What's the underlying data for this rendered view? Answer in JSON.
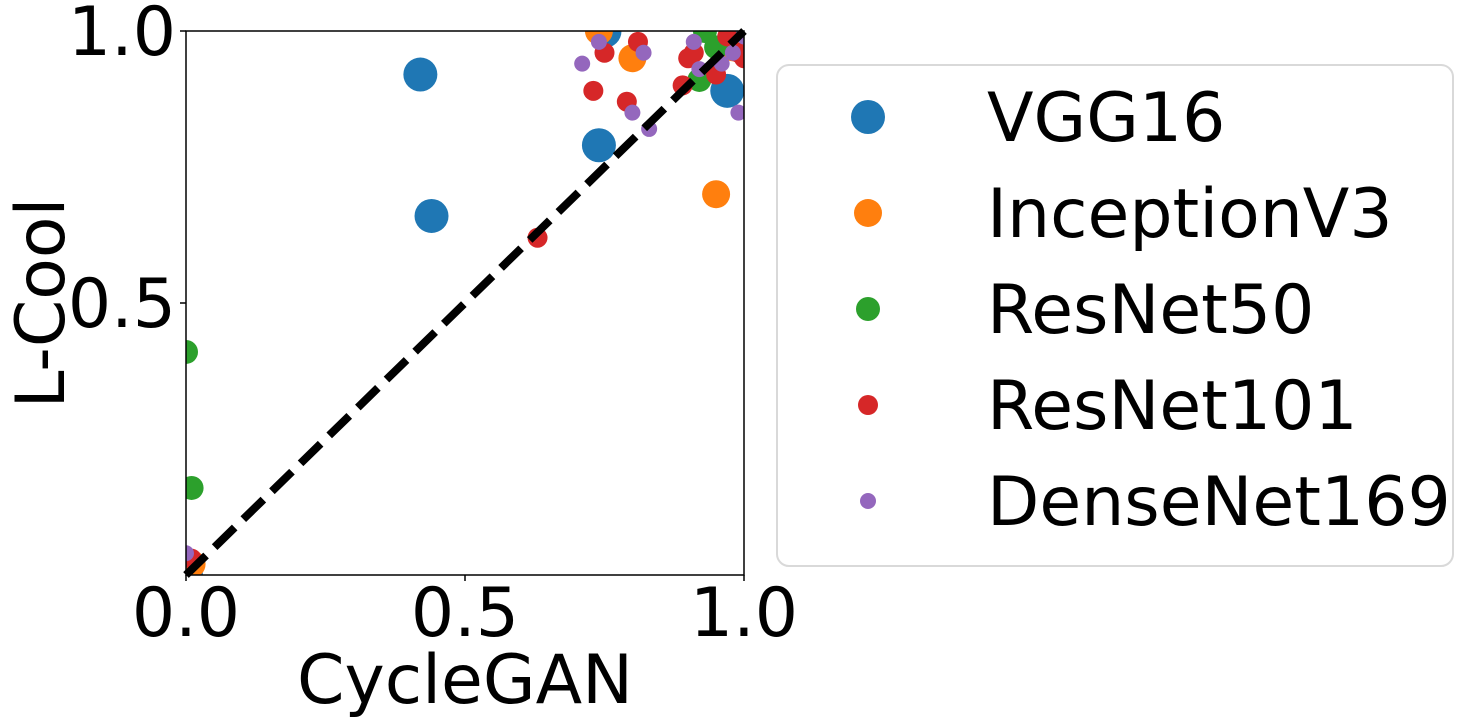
{
  "chart_data": {
    "type": "scatter",
    "xlabel": "CycleGAN",
    "ylabel": "L-Cool",
    "xlim": [
      0,
      1
    ],
    "ylim": [
      0,
      1
    ],
    "xticks": [
      "0.0",
      "0.5",
      "1.0"
    ],
    "yticks": [
      "0.5",
      "1.0"
    ],
    "grid": false,
    "legend_position": "right, outside plot",
    "reference_line": {
      "style": "dashed",
      "color": "#000000",
      "from": [
        0,
        0
      ],
      "to": [
        1,
        1
      ]
    },
    "series": [
      {
        "name": "VGG16",
        "color": "#1f77b4",
        "marker_size": "large",
        "points": [
          [
            0.0,
            0.0
          ],
          [
            0.42,
            0.92
          ],
          [
            0.44,
            0.66
          ],
          [
            0.74,
            0.79
          ],
          [
            0.75,
            1.0
          ],
          [
            0.97,
            0.89
          ],
          [
            0.99,
            0.98
          ]
        ]
      },
      {
        "name": "InceptionV3",
        "color": "#ff7f0e",
        "marker_size": "medium-large",
        "points": [
          [
            0.01,
            0.02
          ],
          [
            0.74,
            1.0
          ],
          [
            0.8,
            0.95
          ],
          [
            0.95,
            0.7
          ],
          [
            0.98,
            0.97
          ]
        ]
      },
      {
        "name": "ResNet50",
        "color": "#2ca02c",
        "marker_size": "medium",
        "points": [
          [
            0.0,
            0.41
          ],
          [
            0.01,
            0.16
          ],
          [
            0.92,
            0.91
          ],
          [
            0.93,
            1.0
          ],
          [
            0.95,
            0.97
          ]
        ]
      },
      {
        "name": "ResNet101",
        "color": "#d62728",
        "marker_size": "small",
        "points": [
          [
            0.01,
            0.03
          ],
          [
            0.63,
            0.62
          ],
          [
            0.73,
            0.89
          ],
          [
            0.75,
            0.96
          ],
          [
            0.79,
            0.87
          ],
          [
            0.81,
            0.98
          ],
          [
            0.89,
            0.9
          ],
          [
            0.9,
            0.95
          ],
          [
            0.91,
            0.96
          ],
          [
            0.95,
            0.92
          ],
          [
            0.97,
            0.99
          ],
          [
            0.99,
            0.96
          ],
          [
            1.0,
            0.95
          ]
        ]
      },
      {
        "name": "DenseNet169",
        "color": "#9467bd",
        "marker_size": "smallest",
        "points": [
          [
            0.0,
            0.04
          ],
          [
            0.71,
            0.94
          ],
          [
            0.74,
            0.98
          ],
          [
            0.8,
            0.85
          ],
          [
            0.82,
            0.96
          ],
          [
            0.83,
            0.82
          ],
          [
            0.91,
            0.98
          ],
          [
            0.92,
            0.93
          ],
          [
            0.96,
            0.94
          ],
          [
            0.98,
            0.96
          ],
          [
            0.99,
            0.85
          ],
          [
            1.0,
            0.99
          ]
        ]
      }
    ]
  }
}
